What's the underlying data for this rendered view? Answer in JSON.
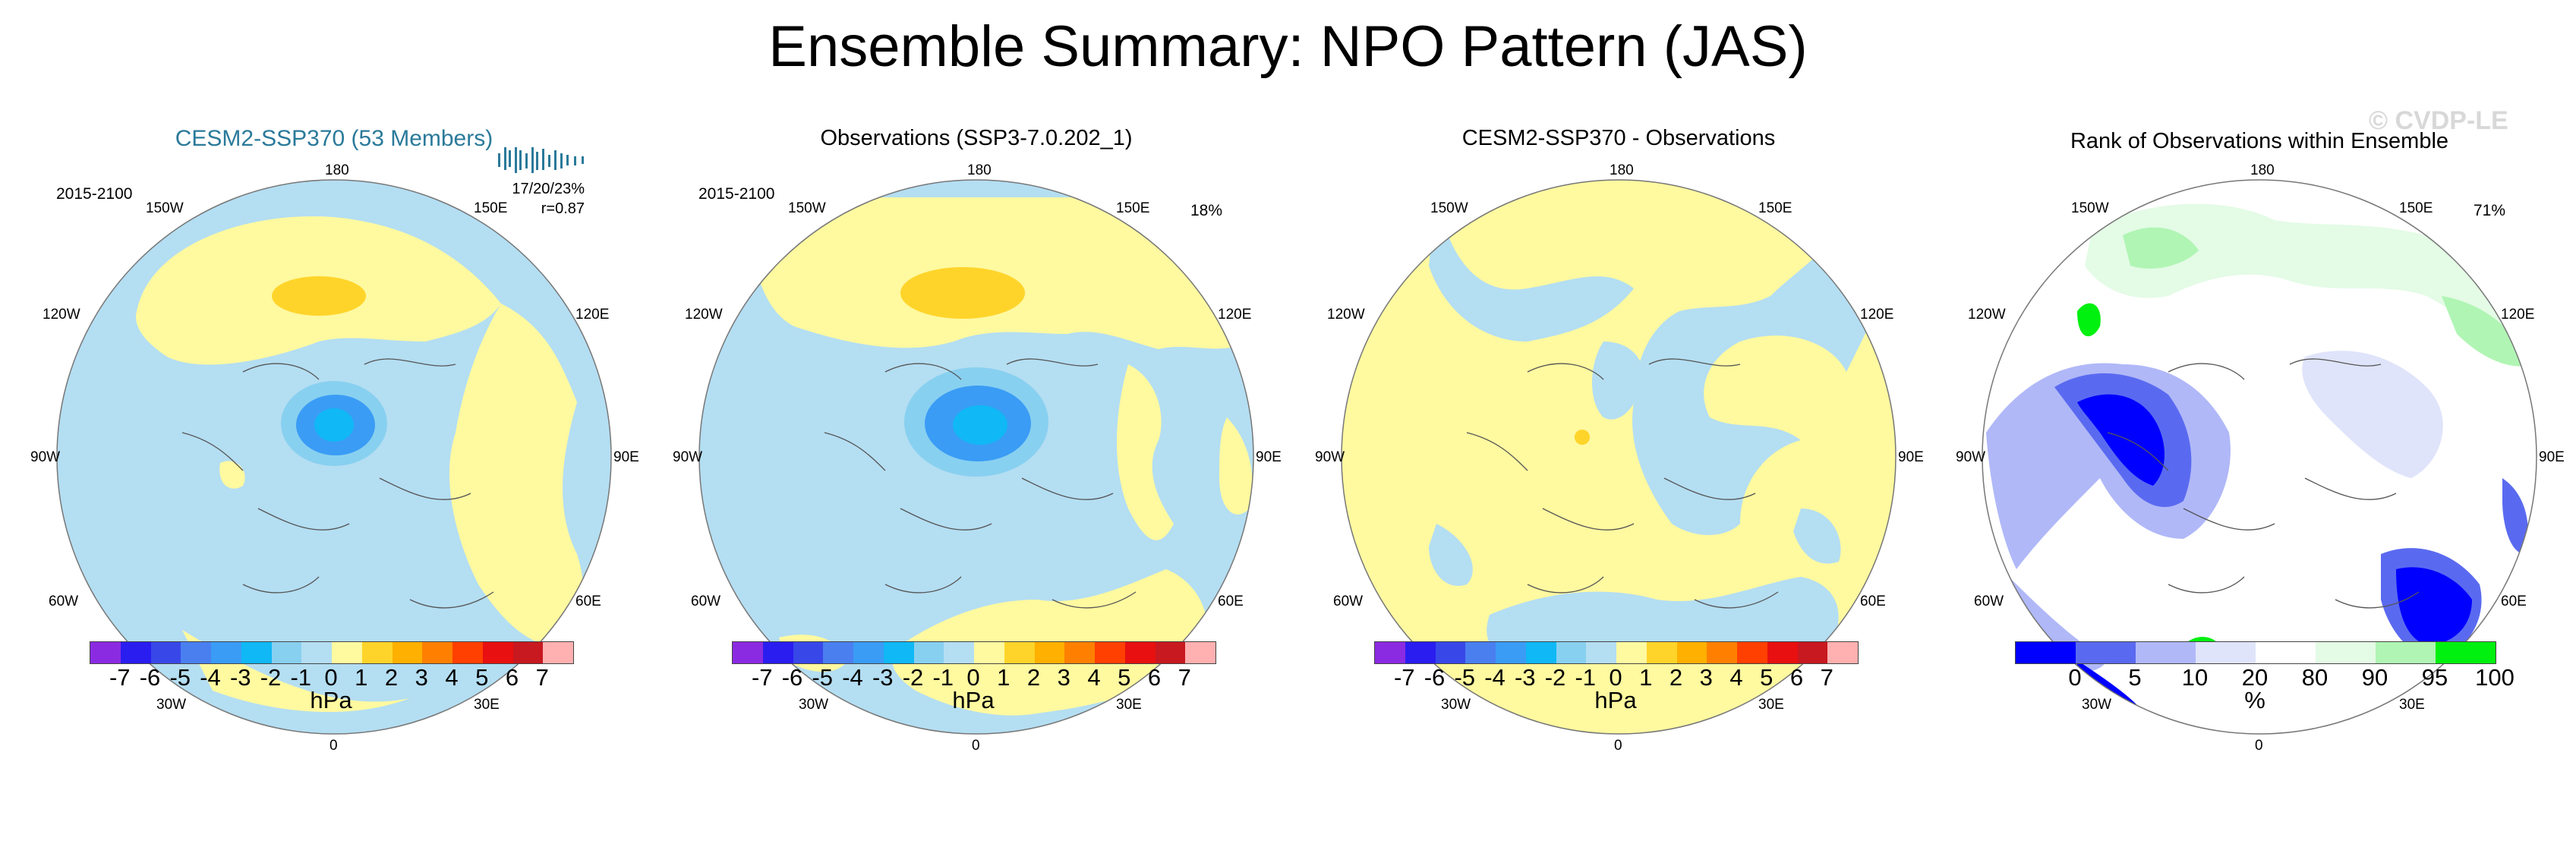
{
  "title": "Ensemble Summary: NPO Pattern (JAS)",
  "watermark": "© CVDP-LE",
  "panels": [
    {
      "title": "CESM2-SSP370 (53 Members)",
      "years": "2015-2100",
      "stats_line1": "17/20/23%",
      "stats_line2": "r=0.87",
      "pct": ""
    },
    {
      "title": "Observations (SSP3-7.0.202_1)",
      "years": "2015-2100",
      "stats_line1": "",
      "stats_line2": "",
      "pct": "18%"
    },
    {
      "title": "CESM2-SSP370 - Observations",
      "years": "",
      "stats_line1": "",
      "stats_line2": "",
      "pct": ""
    },
    {
      "title": "Rank of Observations within Ensemble",
      "years": "",
      "stats_line1": "",
      "stats_line2": "",
      "pct": "71%"
    }
  ],
  "lon_labels": {
    "top": "180",
    "bottom": "0",
    "left": "90W",
    "right": "90E",
    "upper_left1": "150W",
    "upper_left2": "120W",
    "lower_left1": "60W",
    "lower_left2": "30W",
    "upper_right1": "150E",
    "upper_right2": "120E",
    "lower_right1": "60E",
    "lower_right2": "30E"
  },
  "colorbar_hpa": {
    "ticks": [
      "-7",
      "-6",
      "-5",
      "-4",
      "-3",
      "-2",
      "-1",
      "0",
      "1",
      "2",
      "3",
      "4",
      "5",
      "6",
      "7"
    ],
    "colors": [
      "#8a2be2",
      "#2a1df0",
      "#3848e8",
      "#4a7ff0",
      "#3a9cf5",
      "#10b8f5",
      "#88d0f0",
      "#b4def2",
      "#fff9a0",
      "#ffd42a",
      "#ffb000",
      "#ff8000",
      "#ff4000",
      "#e81010",
      "#c81820",
      "#ffb0b0"
    ],
    "unit": "hPa"
  },
  "colorbar_pct": {
    "ticks": [
      "0",
      "5",
      "10",
      "20",
      "80",
      "90",
      "95",
      "100"
    ],
    "colors": [
      "#0000ff",
      "#5a6af0",
      "#b0b8f8",
      "#e0e4fa",
      "#ffffff",
      "#e4fbe6",
      "#b0f5b4",
      "#00f010"
    ],
    "unit": "%"
  },
  "colors": {
    "neg_light": "#b4def2",
    "neg_mid": "#88d0f0",
    "neg_strong": "#3a9cf5",
    "pos_light": "#fff9a0",
    "pos_mid": "#ffd42a",
    "blue_rank": "#0000ff",
    "green_rank": "#00f010"
  }
}
